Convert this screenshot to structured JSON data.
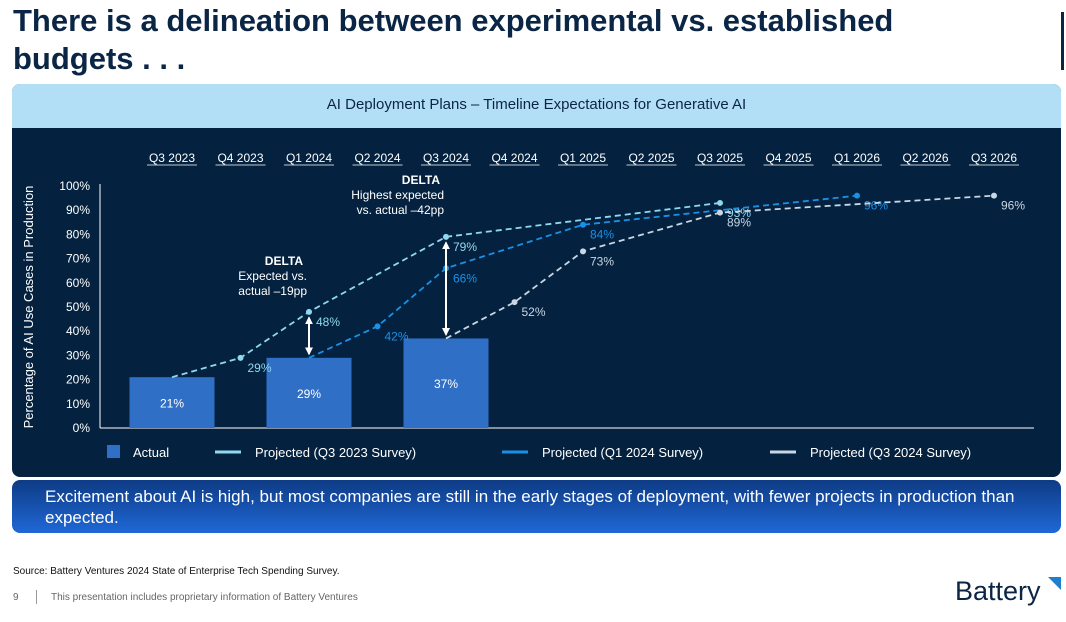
{
  "page": {
    "title": "There is a delineation between experimental vs. established budgets . . .",
    "banner": "Excitement about AI is high, but most companies are still in the early stages of deployment, with fewer projects in production than expected.",
    "source": "Source: Battery Ventures 2024 State of Enterprise Tech Spending Survey.",
    "page_number": "9",
    "footer_note": "This presentation includes proprietary information of Battery Ventures",
    "brand": "Battery"
  },
  "colors": {
    "panel_bg": "#04223f",
    "header_bg": "#b3dff6",
    "actual": "#2f6fc6",
    "q3_2023": "#8fd8f0",
    "q1_2024": "#1a90e6",
    "q3_2024": "#c9d6e3"
  },
  "chart_data": {
    "type": "bar",
    "title": "AI Deployment Plans – Timeline Expectations for Generative AI",
    "ylabel": "Percentage of AI Use Cases in Production",
    "ylim": [
      0,
      100
    ],
    "y_ticks": [
      "0%",
      "10%",
      "20%",
      "30%",
      "40%",
      "50%",
      "60%",
      "70%",
      "80%",
      "90%",
      "100%"
    ],
    "categories": [
      "Q3 2023",
      "Q4 2023",
      "Q1 2024",
      "Q2 2024",
      "Q3 2024",
      "Q4 2024",
      "Q1 2025",
      "Q2 2025",
      "Q3 2025",
      "Q4 2025",
      "Q1 2026",
      "Q2 2026",
      "Q3 2026"
    ],
    "series": [
      {
        "name": "Actual",
        "kind": "bar",
        "color_key": "actual",
        "points": [
          {
            "x": "Q3 2023",
            "y": 21,
            "label": "21%"
          },
          {
            "x": "Q1 2024",
            "y": 29,
            "label": "29%"
          },
          {
            "x": "Q3 2024",
            "y": 37,
            "label": "37%"
          }
        ]
      },
      {
        "name": "Projected  (Q3 2023 Survey)",
        "kind": "line",
        "color_key": "q3_2023",
        "points": [
          {
            "x": "Q3 2023",
            "y": 21,
            "label": ""
          },
          {
            "x": "Q4 2023",
            "y": 29,
            "label": "29%"
          },
          {
            "x": "Q1 2024",
            "y": 48,
            "label": "48%"
          },
          {
            "x": "Q3 2024",
            "y": 79,
            "label": "79%"
          },
          {
            "x": "Q3 2025",
            "y": 93,
            "label": "93%"
          }
        ]
      },
      {
        "name": "Projected  (Q1 2024 Survey)",
        "kind": "line",
        "color_key": "q1_2024",
        "points": [
          {
            "x": "Q1 2024",
            "y": 29,
            "label": ""
          },
          {
            "x": "Q2 2024",
            "y": 42,
            "label": "42%"
          },
          {
            "x": "Q3 2024",
            "y": 66,
            "label": "66%"
          },
          {
            "x": "Q1 2025",
            "y": 84,
            "label": "84%"
          },
          {
            "x": "Q1 2026",
            "y": 96,
            "label": "96%"
          }
        ]
      },
      {
        "name": "Projected  (Q3 2024 Survey)",
        "kind": "line",
        "color_key": "q3_2024",
        "points": [
          {
            "x": "Q3 2024",
            "y": 37,
            "label": ""
          },
          {
            "x": "Q4 2024",
            "y": 52,
            "label": "52%"
          },
          {
            "x": "Q1 2025",
            "y": 73,
            "label": "73%"
          },
          {
            "x": "Q3 2025",
            "y": 89,
            "label": "89%"
          },
          {
            "x": "Q3 2026",
            "y": 96,
            "label": "96%"
          }
        ]
      }
    ],
    "annotations": [
      {
        "x": "Q1 2024",
        "from": 29,
        "to": 48,
        "heading": "DELTA",
        "lines": [
          "Expected vs.",
          "actual –19pp"
        ]
      },
      {
        "x": "Q3 2024",
        "from": 37,
        "to": 79,
        "heading": "DELTA",
        "lines": [
          "Highest expected",
          "vs. actual –42pp"
        ]
      }
    ],
    "legend_position": "bottom",
    "grid": false
  }
}
